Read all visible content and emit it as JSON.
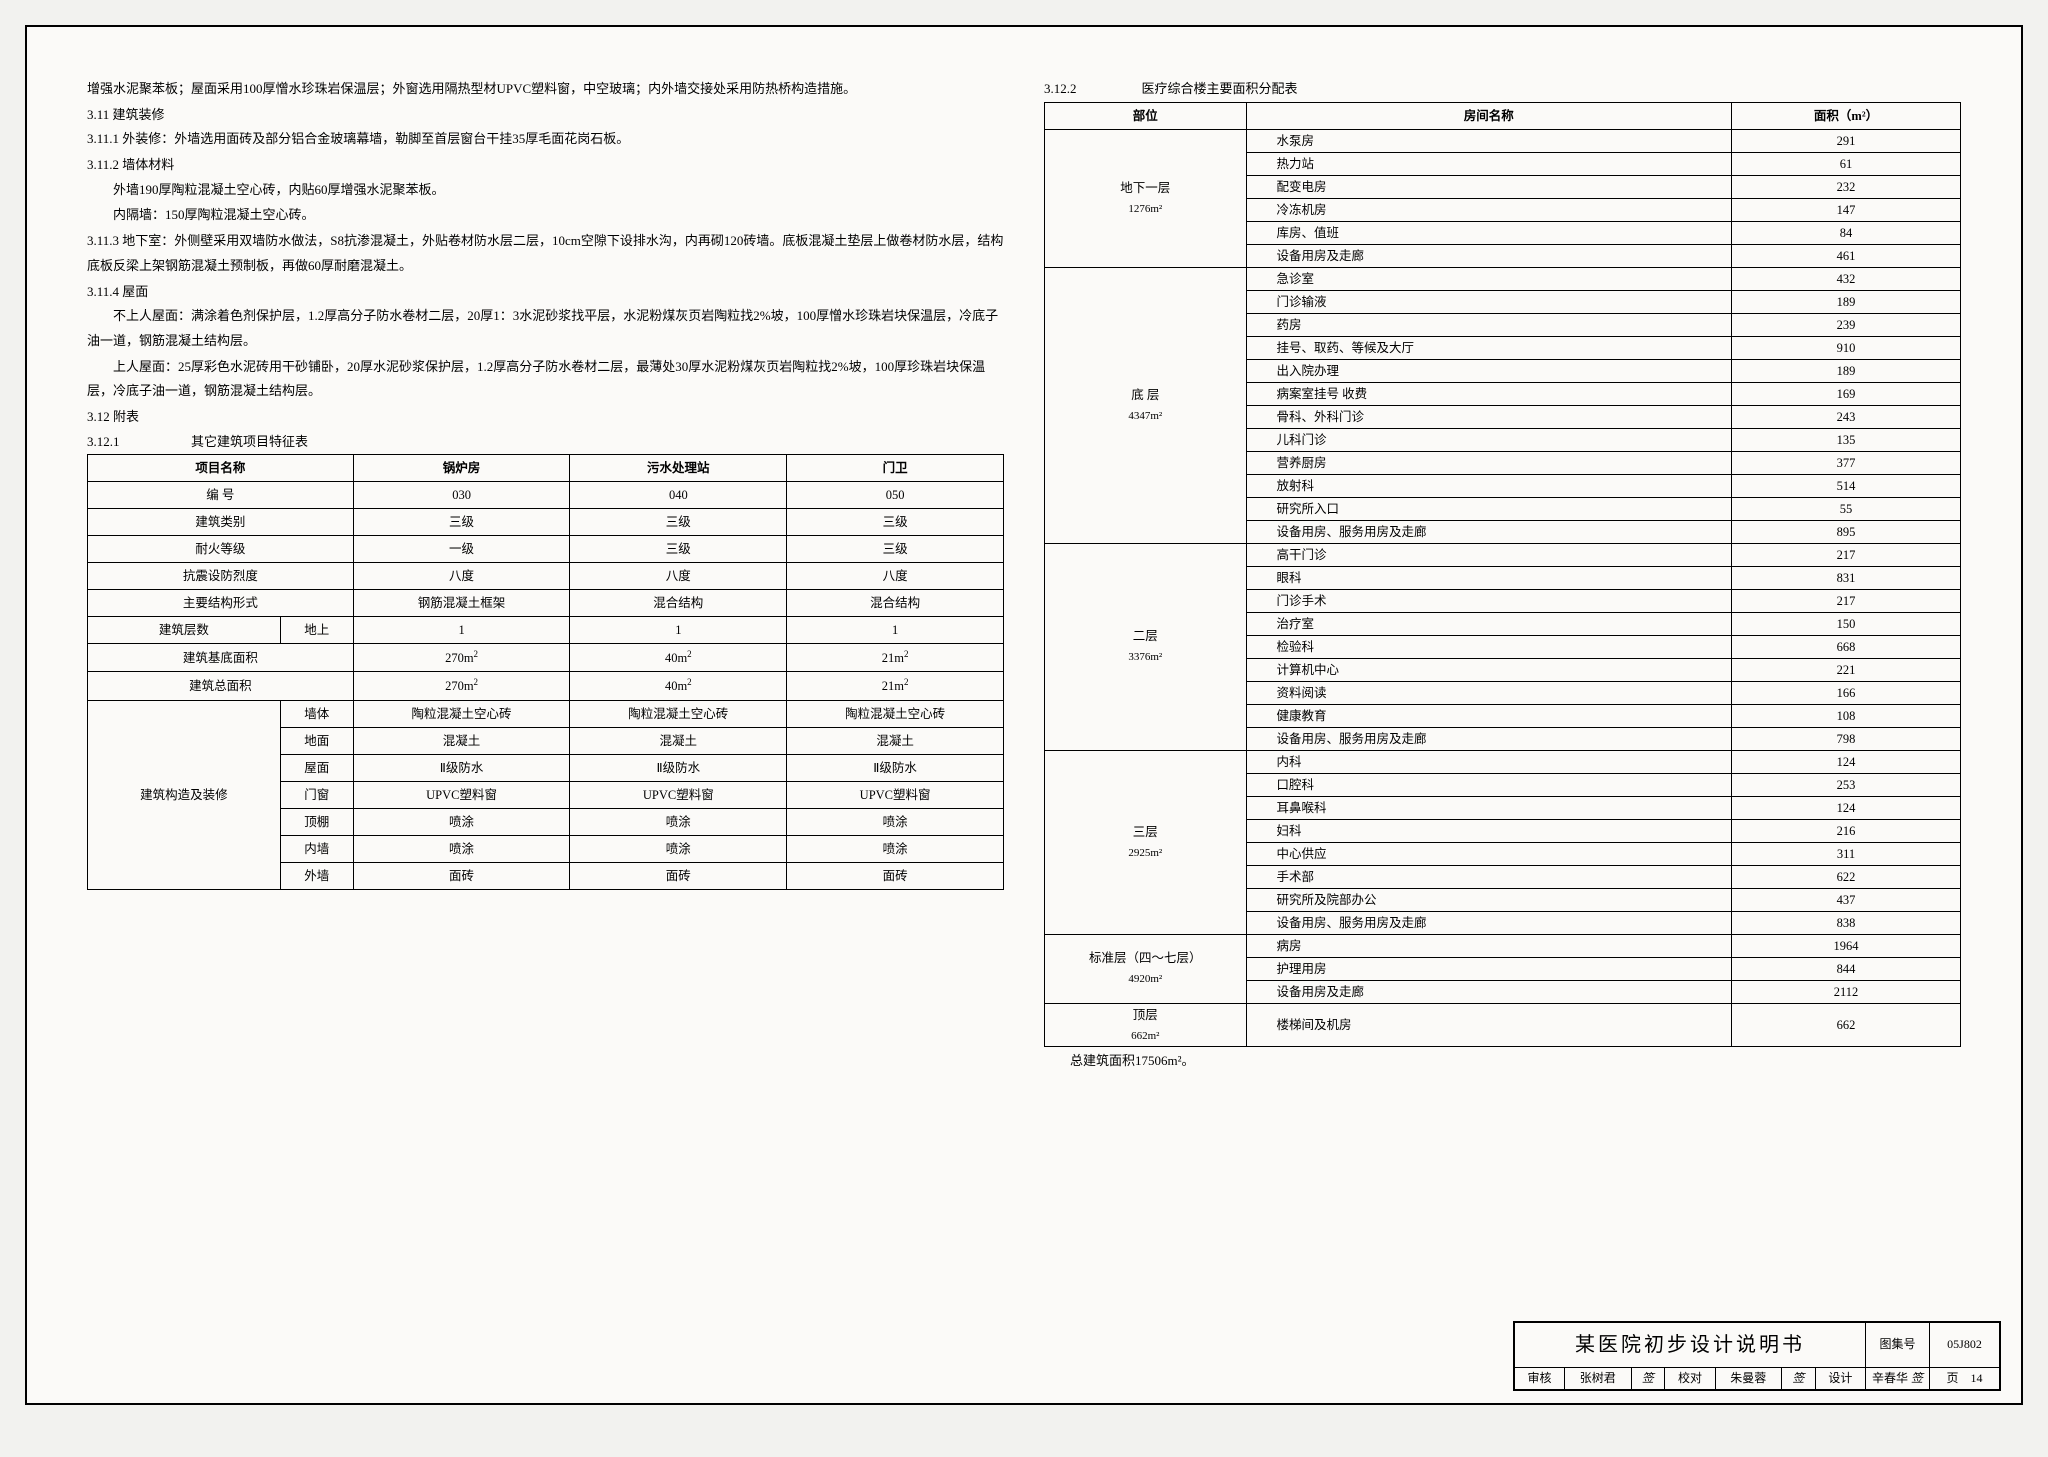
{
  "left": {
    "p1": "增强水泥聚苯板；屋面采用100厚憎水珍珠岩保温层；外窗选用隔热型材UPVC塑料窗，中空玻璃；内外墙交接处采用防热桥构造措施。",
    "s311": "3.11  建筑装修",
    "p3111": "3.11.1  外装修：外墙选用面砖及部分铝合金玻璃幕墙，勒脚至首层窗台干挂35厚毛面花岗石板。",
    "s3112": "3.11.2  墙体材料",
    "p3112a": "外墙190厚陶粒混凝土空心砖，内贴60厚增强水泥聚苯板。",
    "p3112b": "内隔墙：150厚陶粒混凝土空心砖。",
    "p3113": "3.11.3  地下室：外侧壁采用双墙防水做法，S8抗渗混凝土，外贴卷材防水层二层，10cm空隙下设排水沟，内再砌120砖墙。底板混凝土垫层上做卷材防水层，结构底板反梁上架钢筋混凝土预制板，再做60厚耐磨混凝土。",
    "s3114": "3.11.4  屋面",
    "p3114a": "不上人屋面：满涂着色剂保护层，1.2厚高分子防水卷材二层，20厚1：3水泥砂浆找平层，水泥粉煤灰页岩陶粒找2%坡，100厚憎水珍珠岩块保温层，冷底子油一道，钢筋混凝土结构层。",
    "p3114b": "上人屋面：25厚彩色水泥砖用干砂铺卧，20厚水泥砂浆保护层，1.2厚高分子防水卷材二层，最薄处30厚水泥粉煤灰页岩陶粒找2%坡，100厚珍珠岩块保温层，冷底子油一道，钢筋混凝土结构层。",
    "s312": "3.12  附表",
    "s3121": "3.12.1",
    "table1_title": "其它建筑项目特征表",
    "table1": {
      "headers": [
        "项目名称",
        "锅炉房",
        "污水处理站",
        "门卫"
      ],
      "rows": [
        {
          "label": "编    号",
          "c1": "030",
          "c2": "040",
          "c3": "050"
        },
        {
          "label": "建筑类别",
          "c1": "三级",
          "c2": "三级",
          "c3": "三级"
        },
        {
          "label": "耐火等级",
          "c1": "一级",
          "c2": "三级",
          "c3": "三级"
        },
        {
          "label": "抗震设防烈度",
          "c1": "八度",
          "c2": "八度",
          "c3": "八度"
        },
        {
          "label": "主要结构形式",
          "c1": "钢筋混凝土框架",
          "c2": "混合结构",
          "c3": "混合结构"
        }
      ],
      "floors_label_a": "建筑层数",
      "floors_label_b": "地上",
      "floors": {
        "c1": "1",
        "c2": "1",
        "c3": "1"
      },
      "base_area_label": "建筑基底面积",
      "base_area": {
        "c1": "270m",
        "c2": "40m",
        "c3": "21m"
      },
      "total_area_label": "建筑总面积",
      "total_area": {
        "c1": "270m",
        "c2": "40m",
        "c3": "21m"
      },
      "construct_label": "建筑构造及装修",
      "construct_rows": [
        {
          "k": "墙体",
          "c1": "陶粒混凝土空心砖",
          "c2": "陶粒混凝土空心砖",
          "c3": "陶粒混凝土空心砖"
        },
        {
          "k": "地面",
          "c1": "混凝土",
          "c2": "混凝土",
          "c3": "混凝土"
        },
        {
          "k": "屋面",
          "c1": "Ⅱ级防水",
          "c2": "Ⅱ级防水",
          "c3": "Ⅱ级防水"
        },
        {
          "k": "门窗",
          "c1": "UPVC塑料窗",
          "c2": "UPVC塑料窗",
          "c3": "UPVC塑料窗"
        },
        {
          "k": "顶棚",
          "c1": "喷涂",
          "c2": "喷涂",
          "c3": "喷涂"
        },
        {
          "k": "内墙",
          "c1": "喷涂",
          "c2": "喷涂",
          "c3": "喷涂"
        },
        {
          "k": "外墙",
          "c1": "面砖",
          "c2": "面砖",
          "c3": "面砖"
        }
      ]
    }
  },
  "right": {
    "s3122": "3.12.2",
    "table2_title": "医疗综合楼主要面积分配表",
    "table2": {
      "headers": [
        "部位",
        "房间名称",
        "面积（m²）"
      ],
      "groups": [
        {
          "label": "地下一层",
          "area": "1276m²",
          "rows": [
            {
              "room": "水泵房",
              "a": "291"
            },
            {
              "room": "热力站",
              "a": "61"
            },
            {
              "room": "配变电房",
              "a": "232"
            },
            {
              "room": "冷冻机房",
              "a": "147"
            },
            {
              "room": "库房、值班",
              "a": "84"
            },
            {
              "room": "设备用房及走廊",
              "a": "461"
            }
          ]
        },
        {
          "label": "底  层",
          "area": "4347m²",
          "rows": [
            {
              "room": "急诊室",
              "a": "432"
            },
            {
              "room": "门诊输液",
              "a": "189"
            },
            {
              "room": "药房",
              "a": "239"
            },
            {
              "room": "挂号、取药、等候及大厅",
              "a": "910"
            },
            {
              "room": "出入院办理",
              "a": "189"
            },
            {
              "room": "病案室挂号  收费",
              "a": "169"
            },
            {
              "room": "骨科、外科门诊",
              "a": "243"
            },
            {
              "room": "儿科门诊",
              "a": "135"
            },
            {
              "room": "营养厨房",
              "a": "377"
            },
            {
              "room": "放射科",
              "a": "514"
            },
            {
              "room": "研究所入口",
              "a": "55"
            },
            {
              "room": "设备用房、服务用房及走廊",
              "a": "895"
            }
          ]
        },
        {
          "label": "二层",
          "area": "3376m²",
          "rows": [
            {
              "room": "高干门诊",
              "a": "217"
            },
            {
              "room": "眼科",
              "a": "831"
            },
            {
              "room": "门诊手术",
              "a": "217"
            },
            {
              "room": "治疗室",
              "a": "150"
            },
            {
              "room": "检验科",
              "a": "668"
            },
            {
              "room": "计算机中心",
              "a": "221"
            },
            {
              "room": "资料阅读",
              "a": "166"
            },
            {
              "room": "健康教育",
              "a": "108"
            },
            {
              "room": "设备用房、服务用房及走廊",
              "a": "798"
            }
          ]
        },
        {
          "label": "三层",
          "area": "2925m²",
          "rows": [
            {
              "room": "内科",
              "a": "124"
            },
            {
              "room": "口腔科",
              "a": "253"
            },
            {
              "room": "耳鼻喉科",
              "a": "124"
            },
            {
              "room": "妇科",
              "a": "216"
            },
            {
              "room": "中心供应",
              "a": "311"
            },
            {
              "room": "手术部",
              "a": "622"
            },
            {
              "room": "研究所及院部办公",
              "a": "437"
            },
            {
              "room": "设备用房、服务用房及走廊",
              "a": "838"
            }
          ]
        },
        {
          "label": "标准层（四～七层）",
          "area": "4920m²",
          "rows": [
            {
              "room": "病房",
              "a": "1964"
            },
            {
              "room": "护理用房",
              "a": "844"
            },
            {
              "room": "设备用房及走廊",
              "a": "2112"
            }
          ]
        },
        {
          "label": "顶层",
          "area": "662m²",
          "rows": [
            {
              "room": "楼梯间及机房",
              "a": "662"
            }
          ]
        }
      ]
    },
    "total": "总建筑面积17506m²。"
  },
  "titleblock": {
    "main": "某医院初步设计说明书",
    "atlas_label": "图集号",
    "atlas": "05J802",
    "review_label": "审核",
    "review_name": "张树君",
    "check_label": "校对",
    "check_name": "朱曼蓉",
    "design_label": "设计",
    "design_name": "辛春华",
    "page_label": "页",
    "page": "14"
  }
}
